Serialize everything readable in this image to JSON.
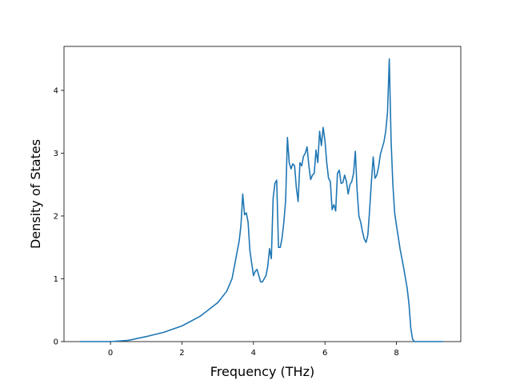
{
  "chart_data": {
    "type": "line",
    "title": "",
    "xlabel": "Frequency (THz)",
    "ylabel": "Density of States",
    "xlim": [
      -1.3,
      9.8
    ],
    "ylim": [
      0,
      4.7
    ],
    "xticks": [
      0,
      2,
      4,
      6,
      8
    ],
    "yticks": [
      0,
      1,
      2,
      3,
      4
    ],
    "xtick_labels": [
      "0",
      "2",
      "4",
      "6",
      "8"
    ],
    "ytick_labels": [
      "0",
      "1",
      "2",
      "3",
      "4"
    ],
    "grid": false,
    "legend": "none",
    "series": [
      {
        "color": "#1f77b4",
        "x": [
          -0.85,
          0.0,
          0.5,
          1.0,
          1.5,
          2.0,
          2.5,
          3.0,
          3.25,
          3.4,
          3.5,
          3.6,
          3.65,
          3.7,
          3.75,
          3.8,
          3.85,
          3.9,
          3.95,
          4.0,
          4.05,
          4.1,
          4.15,
          4.2,
          4.25,
          4.3,
          4.35,
          4.4,
          4.45,
          4.5,
          4.55,
          4.6,
          4.65,
          4.7,
          4.75,
          4.8,
          4.85,
          4.9,
          4.95,
          5.0,
          5.05,
          5.1,
          5.15,
          5.2,
          5.25,
          5.3,
          5.35,
          5.4,
          5.45,
          5.5,
          5.55,
          5.6,
          5.65,
          5.7,
          5.75,
          5.8,
          5.85,
          5.9,
          5.95,
          6.0,
          6.05,
          6.1,
          6.15,
          6.2,
          6.25,
          6.3,
          6.35,
          6.4,
          6.45,
          6.5,
          6.55,
          6.6,
          6.65,
          6.7,
          6.75,
          6.8,
          6.85,
          6.9,
          6.95,
          7.0,
          7.05,
          7.1,
          7.15,
          7.2,
          7.25,
          7.3,
          7.35,
          7.4,
          7.45,
          7.5,
          7.55,
          7.6,
          7.65,
          7.7,
          7.75,
          7.8,
          7.85,
          7.9,
          7.95,
          8.0,
          8.1,
          8.2,
          8.3,
          8.35,
          8.4,
          8.45,
          8.5,
          8.6,
          9.3
        ],
        "y": [
          0.0,
          0.0,
          0.02,
          0.08,
          0.15,
          0.25,
          0.4,
          0.62,
          0.8,
          1.0,
          1.3,
          1.6,
          1.85,
          2.35,
          2.02,
          2.05,
          1.9,
          1.45,
          1.25,
          1.05,
          1.12,
          1.15,
          1.05,
          0.95,
          0.95,
          1.0,
          1.05,
          1.2,
          1.48,
          1.32,
          2.28,
          2.52,
          2.57,
          1.5,
          1.5,
          1.65,
          1.9,
          2.25,
          3.25,
          2.85,
          2.75,
          2.83,
          2.8,
          2.45,
          2.23,
          2.85,
          2.8,
          2.95,
          3.0,
          3.1,
          2.8,
          2.58,
          2.65,
          2.68,
          3.05,
          2.85,
          3.35,
          3.12,
          3.41,
          3.2,
          2.85,
          2.6,
          2.55,
          2.1,
          2.18,
          2.08,
          2.68,
          2.73,
          2.52,
          2.53,
          2.65,
          2.55,
          2.35,
          2.5,
          2.55,
          2.68,
          3.03,
          2.4,
          2.0,
          1.9,
          1.75,
          1.63,
          1.58,
          1.7,
          2.1,
          2.55,
          2.94,
          2.6,
          2.65,
          2.78,
          2.98,
          3.08,
          3.18,
          3.35,
          3.65,
          4.5,
          3.2,
          2.5,
          2.05,
          1.85,
          1.48,
          1.18,
          0.85,
          0.6,
          0.22,
          0.04,
          0.0,
          0.0,
          0.0
        ]
      }
    ]
  }
}
